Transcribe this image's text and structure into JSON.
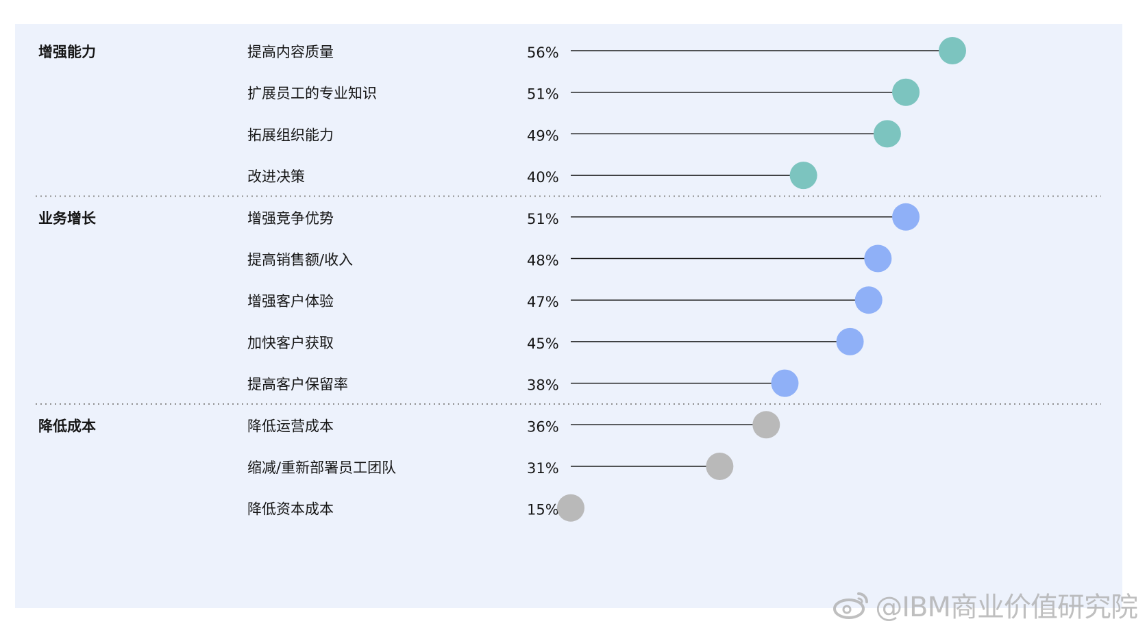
{
  "chart_data": {
    "type": "lollipop",
    "groups": [
      {
        "name": "增强能力",
        "color": "#7cc4bf",
        "items": [
          {
            "label": "提高内容质量",
            "value": 56,
            "value_label": "56%"
          },
          {
            "label": "扩展员工的专业知识",
            "value": 51,
            "value_label": "51%"
          },
          {
            "label": "拓展组织能力",
            "value": 49,
            "value_label": "49%"
          },
          {
            "label": "改进决策",
            "value": 40,
            "value_label": "40%"
          }
        ]
      },
      {
        "name": "业务增长",
        "color": "#8fb0f7",
        "items": [
          {
            "label": "增强竞争优势",
            "value": 51,
            "value_label": "51%"
          },
          {
            "label": "提高销售额/收入",
            "value": 48,
            "value_label": "48%"
          },
          {
            "label": "增强客户体验",
            "value": 47,
            "value_label": "47%"
          },
          {
            "label": "加快客户获取",
            "value": 45,
            "value_label": "45%"
          },
          {
            "label": "提高客户保留率",
            "value": 38,
            "value_label": "38%"
          }
        ]
      },
      {
        "name": "降低成本",
        "color": "#b9b9b9",
        "items": [
          {
            "label": "降低运营成本",
            "value": 36,
            "value_label": "36%"
          },
          {
            "label": "缩减/重新部署员工团队",
            "value": 31,
            "value_label": "31%"
          },
          {
            "label": "降低资本成本",
            "value": 15,
            "value_label": "15%"
          }
        ]
      }
    ],
    "xlim": [
      0,
      56
    ]
  },
  "watermark": {
    "text": "@IBM商业价值研究院",
    "icon": "weibo-icon"
  }
}
